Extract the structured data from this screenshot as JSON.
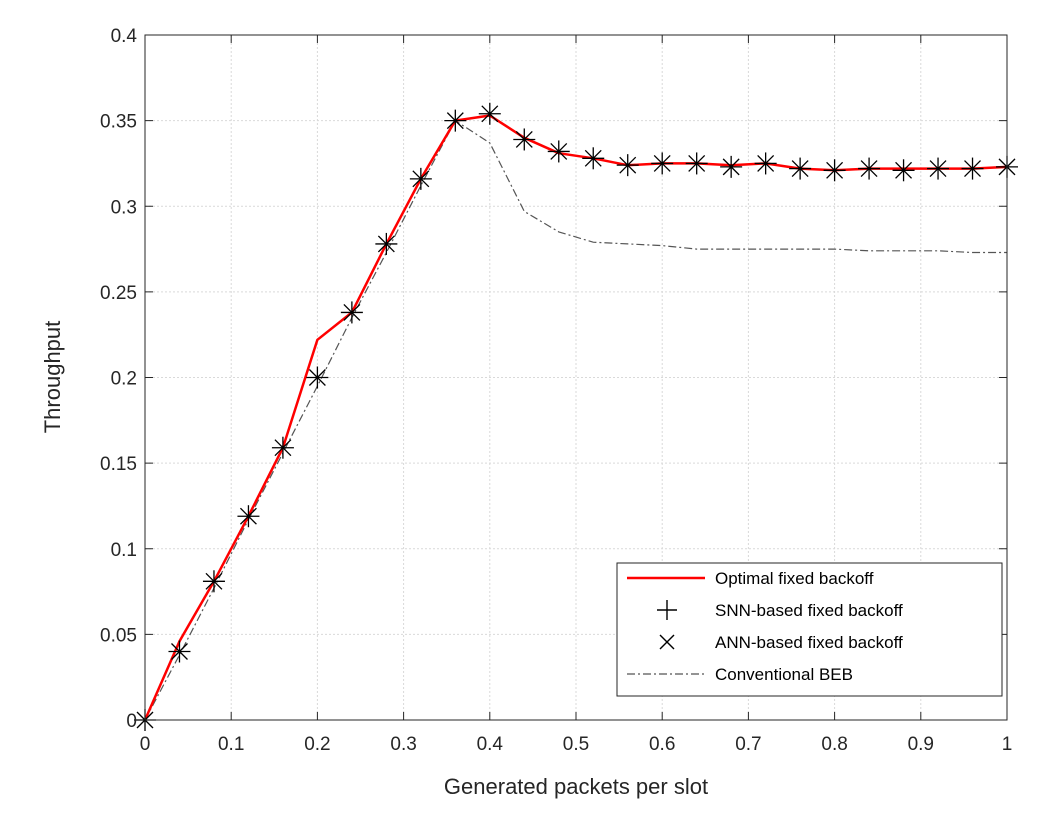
{
  "chart_data": {
    "type": "line",
    "title": "",
    "xlabel": "Generated packets per slot",
    "ylabel": "Throughput",
    "xlim": [
      0,
      1
    ],
    "ylim": [
      0,
      0.4
    ],
    "xticks": [
      0,
      0.1,
      0.2,
      0.3,
      0.4,
      0.5,
      0.6,
      0.7,
      0.8,
      0.9,
      1
    ],
    "xtick_labels": [
      "0",
      "0.1",
      "0.2",
      "0.3",
      "0.4",
      "0.5",
      "0.6",
      "0.7",
      "0.8",
      "0.9",
      "1"
    ],
    "yticks": [
      0,
      0.05,
      0.1,
      0.15,
      0.2,
      0.25,
      0.3,
      0.35,
      0.4
    ],
    "ytick_labels": [
      "0",
      "0.05",
      "0.1",
      "0.15",
      "0.2",
      "0.25",
      "0.3",
      "0.35",
      "0.4"
    ],
    "grid": true,
    "legend_position": "bottom-right",
    "x": [
      0,
      0.04,
      0.08,
      0.12,
      0.16,
      0.2,
      0.24,
      0.28,
      0.32,
      0.36,
      0.4,
      0.44,
      0.48,
      0.52,
      0.56,
      0.6,
      0.64,
      0.68,
      0.72,
      0.76,
      0.8,
      0.84,
      0.88,
      0.92,
      0.96,
      1.0
    ],
    "series": [
      {
        "name": "Optimal fixed backoff",
        "color": "#ff0000",
        "style": "solid",
        "values": [
          0,
          0.046,
          0.081,
          0.119,
          0.159,
          0.222,
          0.238,
          0.278,
          0.316,
          0.35,
          0.353,
          0.34,
          0.331,
          0.328,
          0.324,
          0.325,
          0.325,
          0.324,
          0.325,
          0.322,
          0.321,
          0.322,
          0.322,
          0.322,
          0.322,
          0.323
        ]
      },
      {
        "name": "SNN-based fixed backoff",
        "color": "#000000",
        "style": "marker-plus",
        "values": [
          0,
          0.04,
          0.081,
          0.119,
          0.159,
          0.2,
          0.238,
          0.278,
          0.316,
          0.35,
          0.354,
          0.339,
          0.332,
          0.328,
          0.324,
          0.325,
          0.325,
          0.323,
          0.325,
          0.322,
          0.321,
          0.322,
          0.321,
          0.322,
          0.322,
          0.323
        ]
      },
      {
        "name": "ANN-based fixed backoff",
        "color": "#000000",
        "style": "marker-x",
        "values": [
          0,
          0.04,
          0.081,
          0.119,
          0.159,
          0.2,
          0.238,
          0.278,
          0.316,
          0.35,
          0.354,
          0.339,
          0.332,
          0.328,
          0.324,
          0.325,
          0.325,
          0.323,
          0.325,
          0.322,
          0.321,
          0.322,
          0.321,
          0.322,
          0.322,
          0.323
        ]
      },
      {
        "name": "Conventional BEB",
        "color": "#555555",
        "style": "dashdot",
        "values": [
          0,
          0.038,
          0.077,
          0.117,
          0.156,
          0.195,
          0.235,
          0.273,
          0.312,
          0.35,
          0.337,
          0.297,
          0.285,
          0.279,
          0.278,
          0.277,
          0.275,
          0.275,
          0.275,
          0.275,
          0.275,
          0.274,
          0.274,
          0.274,
          0.273,
          0.273
        ]
      }
    ]
  }
}
